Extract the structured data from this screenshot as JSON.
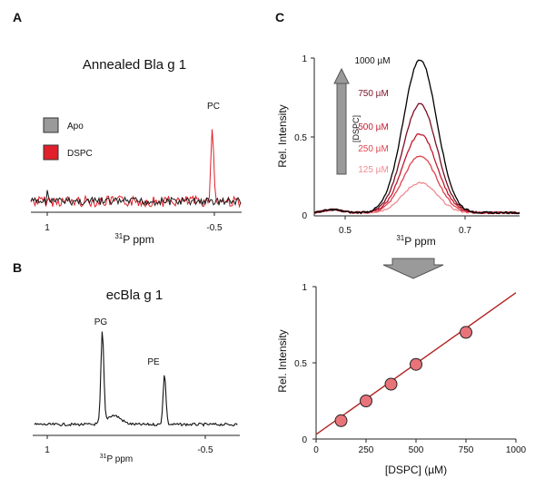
{
  "colors": {
    "apo": "#1a1a1a",
    "dspc": "#e0202a",
    "fit_line": "#b22222",
    "marker_fill": "#e8747a",
    "arrow_gray": "#999999",
    "concentration_colors": [
      "#000000",
      "#7a1025",
      "#c3182e",
      "#e0424c",
      "#ef8a92"
    ]
  },
  "panels": {
    "a": {
      "label": "A",
      "title": "Annealed Bla g 1",
      "legend": [
        {
          "label": "Apo",
          "color_key": "apo"
        },
        {
          "label": "DSPC",
          "color_key": "dspc"
        }
      ],
      "peak_label": "PC",
      "xticks": [
        "1",
        "-0.5"
      ],
      "xlabel_sup": "31",
      "xlabel_rest": "P ppm"
    },
    "b": {
      "label": "B",
      "title": "ecBla g 1",
      "peak_labels": [
        "PG",
        "PE"
      ],
      "xticks": [
        "1",
        "-0.5"
      ],
      "xlabel_sup": "31",
      "xlabel_rest": "P ppm"
    },
    "c": {
      "label": "C",
      "ylabel": "Rel. Intensity",
      "yticks": [
        "0",
        "0.5",
        "1"
      ],
      "xticks": [
        "0.5",
        "0.7"
      ],
      "xlabel_sup": "31",
      "xlabel_rest": "P ppm",
      "arrow_label": "[DSPC]",
      "concentrations": [
        "1000 µM",
        "750 µM",
        "500 µM",
        "250 µM",
        "125 µM"
      ]
    },
    "d": {
      "ylabel": "Rel. Intensity",
      "xlabel": "[DSPC] (µM)",
      "yticks": [
        "0",
        "0.5",
        "1"
      ],
      "xticks": [
        "0",
        "250",
        "500",
        "750",
        "1000"
      ]
    }
  },
  "chart_data": [
    {
      "type": "line",
      "panel": "A",
      "title": "Annealed Bla g 1",
      "xlabel": "31P ppm",
      "x_reversed": true,
      "xlim": [
        1.1,
        -0.7
      ],
      "series": [
        {
          "name": "Apo",
          "peaks": []
        },
        {
          "name": "DSPC",
          "peaks": [
            {
              "x": -0.45,
              "label": "PC",
              "height": 0.9
            }
          ]
        }
      ]
    },
    {
      "type": "line",
      "panel": "B",
      "title": "ecBla g 1",
      "xlabel": "31P ppm",
      "x_reversed": true,
      "xlim": [
        1.1,
        -0.7
      ],
      "peaks": [
        {
          "x": 0.5,
          "label": "PG",
          "height": 1.0
        },
        {
          "x": -0.05,
          "label": "PE",
          "height": 0.55
        }
      ]
    },
    {
      "type": "line",
      "panel": "C",
      "xlabel": "31P ppm",
      "ylabel": "Rel. Intensity",
      "xlim": [
        0.45,
        0.78
      ],
      "ylim": [
        0,
        1
      ],
      "peak_position_ppm": 0.62,
      "series": [
        {
          "name": "1000 µM",
          "peak": 0.97
        },
        {
          "name": "750 µM",
          "peak": 0.69
        },
        {
          "name": "500 µM",
          "peak": 0.5
        },
        {
          "name": "250 µM",
          "peak": 0.36
        },
        {
          "name": "125 µM",
          "peak": 0.19
        }
      ]
    },
    {
      "type": "scatter",
      "panel": "D",
      "xlabel": "[DSPC] (µM)",
      "ylabel": "Rel. Intensity",
      "xlim": [
        0,
        1000
      ],
      "ylim": [
        0,
        1
      ],
      "x": [
        125,
        250,
        375,
        500,
        750
      ],
      "y": [
        0.12,
        0.25,
        0.36,
        0.49,
        0.7
      ],
      "fit_line": {
        "slope": 0.00093,
        "intercept": 0.03
      }
    }
  ]
}
